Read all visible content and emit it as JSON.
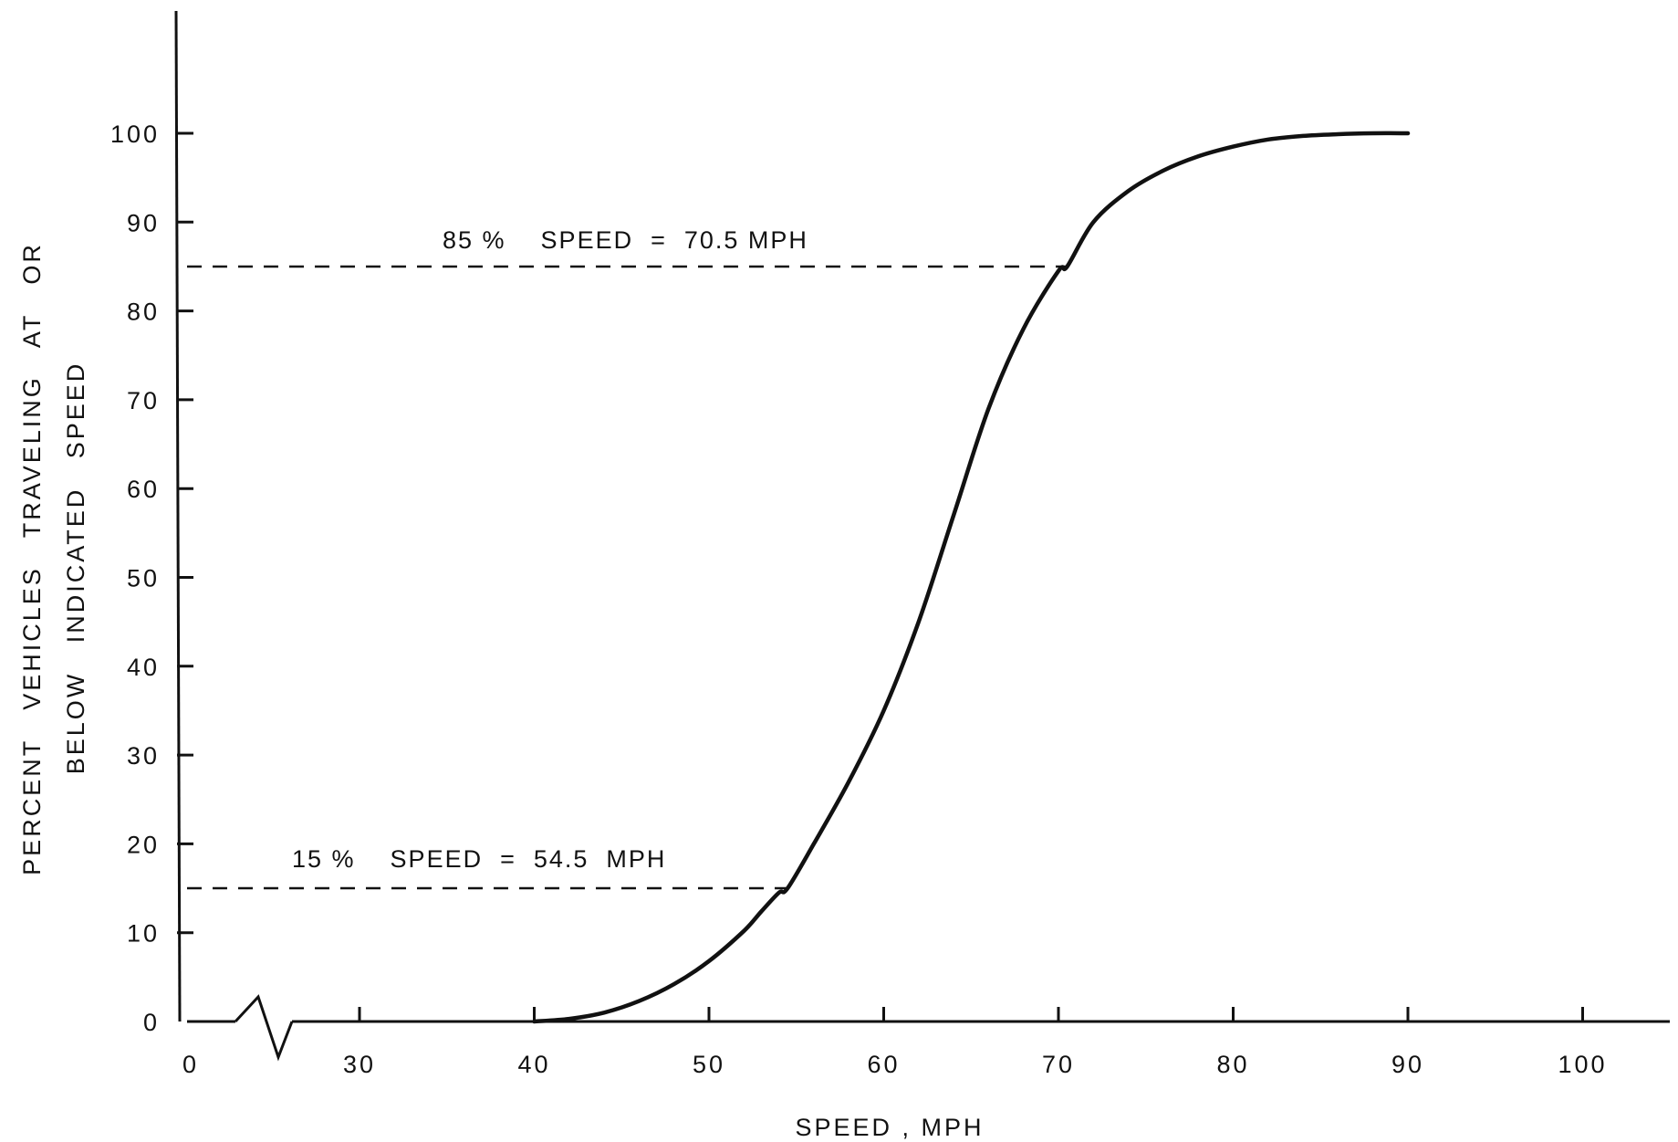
{
  "chart_data": {
    "type": "line",
    "title": "",
    "xlabel": "SPEED , MPH",
    "ylabel_line1": "PERCENT   VEHICLES   TRAVELING   AT   OR",
    "ylabel_line2": "BELOW   INDICATED   SPEED",
    "x_ticks": [
      "0",
      "30",
      "40",
      "50",
      "60",
      "70",
      "80",
      "90",
      "100"
    ],
    "y_ticks": [
      "0",
      "10",
      "20",
      "30",
      "40",
      "50",
      "60",
      "70",
      "80",
      "90",
      "100"
    ],
    "xlim": [
      20,
      105
    ],
    "ylim": [
      0,
      100
    ],
    "axis_break": "between 0 and 30 on the speed axis",
    "grid": false,
    "legend": "none",
    "series": [
      {
        "x": [
          40,
          42,
          44,
          46,
          48,
          50,
          52,
          53,
          54,
          54.5,
          56,
          58,
          60,
          62,
          64,
          66,
          68,
          70,
          70.5,
          72,
          74,
          76,
          78,
          80,
          82,
          84,
          86,
          88,
          90
        ],
        "y": [
          0,
          0.3,
          1,
          2.3,
          4.2,
          6.8,
          10.2,
          12.4,
          14.5,
          15,
          20,
          27,
          35,
          45,
          57,
          69,
          78,
          84.5,
          85,
          90,
          93.5,
          95.8,
          97.4,
          98.5,
          99.3,
          99.7,
          99.9,
          100,
          100
        ],
        "color": "#111111"
      }
    ],
    "annotations": [
      {
        "text": "85 %    SPEED  =  70.5 MPH",
        "percent": 85,
        "speed": 70.5
      },
      {
        "text": "15 %    SPEED  =  54.5  MPH",
        "percent": 15,
        "speed": 54.5
      }
    ]
  }
}
